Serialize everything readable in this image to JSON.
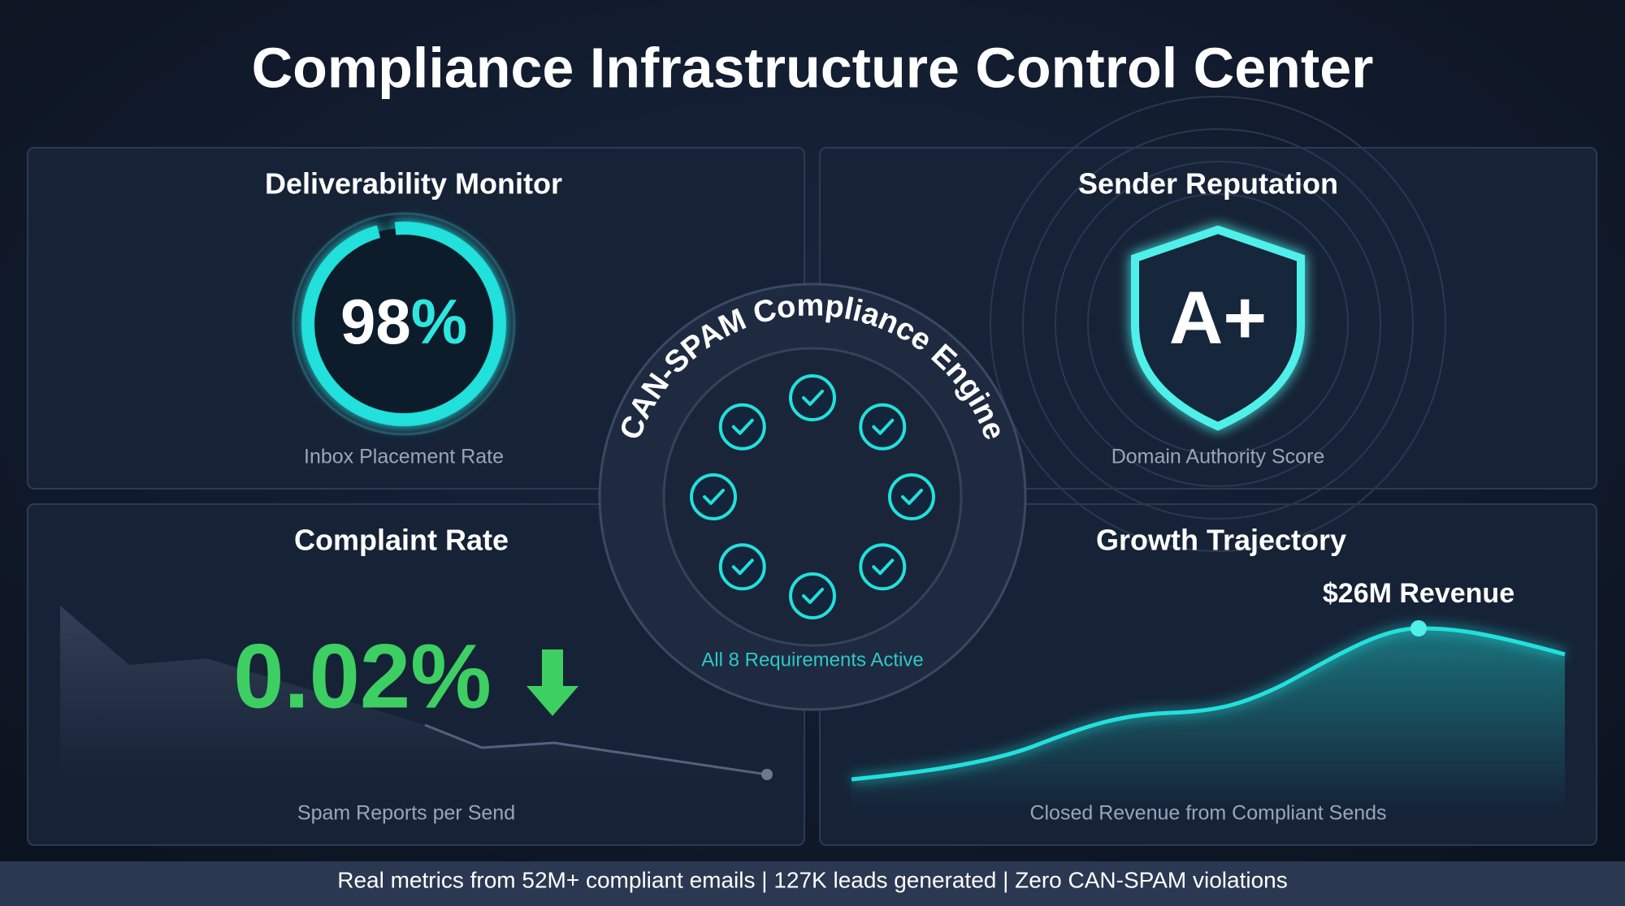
{
  "header": {
    "title": "Compliance Infrastructure Control Center"
  },
  "panels": {
    "deliverability": {
      "title": "Deliverability Monitor",
      "value": "98",
      "unit": "%",
      "caption": "Inbox Placement Rate"
    },
    "reputation": {
      "title": "Sender Reputation",
      "value": "A+",
      "caption": "Domain Authority Score"
    },
    "complaints": {
      "title": "Complaint Rate",
      "value": "0.02%",
      "caption": "Spam Reports per Send"
    },
    "growth": {
      "title": "Growth Trajectory",
      "annotation": "$26M Revenue",
      "caption": "Closed Revenue from Compliant Sends"
    }
  },
  "engine": {
    "title": "CAN-SPAM Compliance Engine",
    "status": "All 8 Requirements Active"
  },
  "footer": {
    "text": "Real metrics from 52M+ compliant emails | 127K leads generated | Zero CAN-SPAM violations"
  }
}
